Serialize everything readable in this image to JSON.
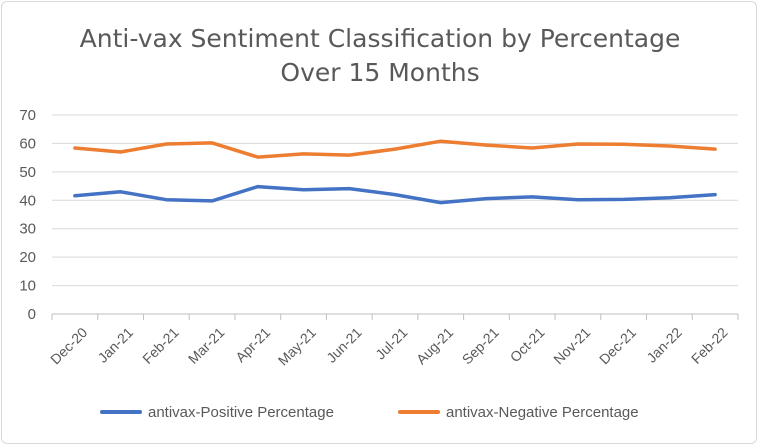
{
  "chart_data": {
    "type": "line",
    "title_line1": "Anti-vax Sentiment Classification by Percentage",
    "title_line2": "Over 15 Months",
    "categories": [
      "Dec-20",
      "Jan-21",
      "Feb-21",
      "Mar-21",
      "Apr-21",
      "May-21",
      "Jun-21",
      "Jul-21",
      "Aug-21",
      "Sep-21",
      "Oct-21",
      "Nov-21",
      "Dec-21",
      "Jan-22",
      "Feb-22"
    ],
    "series": [
      {
        "name": "antivax-Positive Percentage",
        "color": "#4472C4",
        "values": [
          41.6,
          43.0,
          40.2,
          39.8,
          44.8,
          43.7,
          44.1,
          42.0,
          39.2,
          40.6,
          41.2,
          40.2,
          40.3,
          40.9,
          42.0
        ]
      },
      {
        "name": "antivax-Negative Percentage",
        "color": "#ED7D31",
        "values": [
          58.4,
          57.0,
          59.8,
          60.2,
          55.2,
          56.3,
          55.9,
          58.0,
          60.8,
          59.4,
          58.4,
          59.8,
          59.7,
          59.1,
          58.0
        ]
      }
    ],
    "ylim": [
      0,
      70
    ],
    "yticks": [
      0,
      10,
      20,
      30,
      40,
      50,
      60,
      70
    ],
    "grid": true,
    "legend_position": "bottom"
  }
}
